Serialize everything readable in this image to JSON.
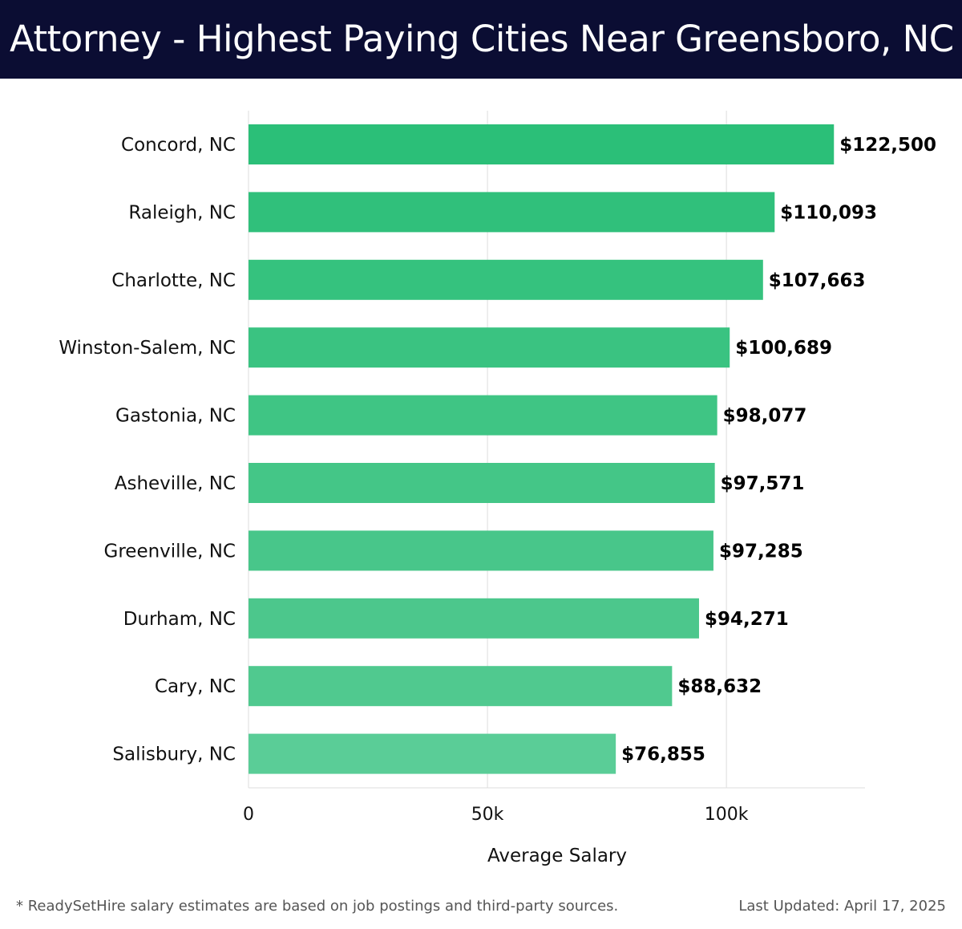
{
  "header": {
    "title": "Attorney - Highest Paying Cities Near Greensboro, NC"
  },
  "chart_data": {
    "type": "bar",
    "orientation": "horizontal",
    "categories": [
      "Concord, NC",
      "Raleigh, NC",
      "Charlotte, NC",
      "Winston-Salem, NC",
      "Gastonia, NC",
      "Asheville, NC",
      "Greenville, NC",
      "Durham, NC",
      "Cary, NC",
      "Salisbury, NC"
    ],
    "values": [
      122500,
      110093,
      107663,
      100689,
      98077,
      97571,
      97285,
      94271,
      88632,
      76855
    ],
    "value_labels": [
      "$122,500",
      "$110,093",
      "$107,663",
      "$100,689",
      "$98,077",
      "$97,571",
      "$97,285",
      "$94,271",
      "$88,632",
      "$76,855"
    ],
    "xlabel": "Average Salary",
    "ylabel": "",
    "xlim": [
      0,
      129000
    ],
    "xticks": [
      0,
      50000,
      100000
    ],
    "xtick_labels": [
      "0",
      "50k",
      "100k"
    ],
    "grid": "vertical",
    "bar_colors": [
      "#2bbf78",
      "#30c07b",
      "#35c27e",
      "#3ac381",
      "#3fc584",
      "#44c687",
      "#48c68a",
      "#4cc78c",
      "#50c98f",
      "#5acd97"
    ]
  },
  "footer": {
    "note": "* ReadySetHire salary estimates are based on job postings and third-party sources.",
    "updated": "Last Updated: April 17, 2025"
  }
}
